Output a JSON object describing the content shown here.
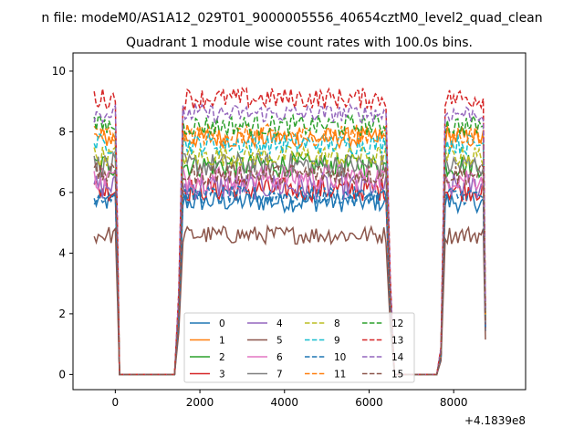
{
  "suptitle": "n file: modeM0/AS1A12_029T01_9000005556_40654cztM0_level2_quad_clean",
  "chart_data": {
    "type": "line",
    "title": "Quadrant 1 module wise count rates with 100.0s bins.",
    "xlabel": "",
    "ylabel": "",
    "x_offset_label": "+4.1839e8",
    "xlim": [
      -1000,
      9700
    ],
    "ylim": [
      -0.5,
      10.6
    ],
    "xticks": [
      0,
      2000,
      4000,
      6000,
      8000
    ],
    "yticks": [
      0,
      2,
      4,
      6,
      8,
      10
    ],
    "grid": false,
    "legend": {
      "placement": "lower center",
      "ncol": 4
    },
    "segments": [
      {
        "start": -500,
        "end": 100,
        "step": 50,
        "rise": [],
        "fall": [
          150,
          200
        ]
      },
      {
        "start": 1600,
        "end": 6400,
        "step": 50
      },
      {
        "start": 7900,
        "end": 8700,
        "step": 50
      }
    ],
    "series": [
      {
        "name": "0",
        "color": "#1f77b4",
        "dash": "solid",
        "level": 5.7,
        "noise": 0.35
      },
      {
        "name": "1",
        "color": "#ff7f0e",
        "dash": "solid",
        "level": 7.8,
        "noise": 0.35
      },
      {
        "name": "2",
        "color": "#2ca02c",
        "dash": "solid",
        "level": 6.9,
        "noise": 0.4
      },
      {
        "name": "3",
        "color": "#d62728",
        "dash": "solid",
        "level": 6.1,
        "noise": 0.4
      },
      {
        "name": "4",
        "color": "#9467bd",
        "dash": "solid",
        "level": 6.2,
        "noise": 0.45
      },
      {
        "name": "5",
        "color": "#8c564b",
        "dash": "solid",
        "level": 4.6,
        "noise": 0.3
      },
      {
        "name": "6",
        "color": "#e377c2",
        "dash": "solid",
        "level": 6.5,
        "noise": 0.45
      },
      {
        "name": "7",
        "color": "#7f7f7f",
        "dash": "solid",
        "level": 6.9,
        "noise": 0.4
      },
      {
        "name": "8",
        "color": "#bcbd22",
        "dash": "dashed",
        "level": 7.2,
        "noise": 0.35
      },
      {
        "name": "9",
        "color": "#17becf",
        "dash": "dashed",
        "level": 7.6,
        "noise": 0.35
      },
      {
        "name": "10",
        "color": "#1f77b4",
        "dash": "dashed",
        "level": 5.9,
        "noise": 0.3
      },
      {
        "name": "11",
        "color": "#ff7f0e",
        "dash": "dashed",
        "level": 7.9,
        "noise": 0.35
      },
      {
        "name": "12",
        "color": "#2ca02c",
        "dash": "dashed",
        "level": 8.2,
        "noise": 0.35
      },
      {
        "name": "13",
        "color": "#d62728",
        "dash": "dashed",
        "level": 9.1,
        "noise": 0.35
      },
      {
        "name": "14",
        "color": "#9467bd",
        "dash": "dashed",
        "level": 8.6,
        "noise": 0.3
      },
      {
        "name": "15",
        "color": "#8c564b",
        "dash": "dashed",
        "level": 6.6,
        "noise": 0.35
      }
    ]
  }
}
